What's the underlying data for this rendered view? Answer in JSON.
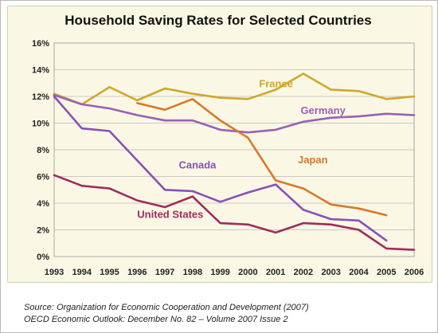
{
  "chart_data": {
    "type": "line",
    "title": "Household Saving Rates for Selected Countries",
    "x": [
      1993,
      1994,
      1995,
      1996,
      1997,
      1998,
      1999,
      2000,
      2001,
      2002,
      2003,
      2004,
      2005,
      2006
    ],
    "x_tick_labels": [
      "1993",
      "1994",
      "1995",
      "1996",
      "1997",
      "1998",
      "1999",
      "2000",
      "2001",
      "2002",
      "2003",
      "2004",
      "2005",
      "2006"
    ],
    "y_tick_labels": [
      "0%",
      "2%",
      "4%",
      "6%",
      "8%",
      "10%",
      "12%",
      "14%",
      "16%"
    ],
    "y_ticks": [
      0,
      2,
      4,
      6,
      8,
      10,
      12,
      14,
      16
    ],
    "ylim": [
      0,
      16
    ],
    "xlim": [
      1993,
      2006
    ],
    "grid": true,
    "legend": "inline labels",
    "series": [
      {
        "name": "France",
        "color": "#d4a52a",
        "values": [
          12.2,
          11.4,
          12.7,
          11.7,
          12.6,
          12.2,
          11.9,
          11.8,
          12.5,
          13.7,
          12.5,
          12.4,
          11.8,
          12.0
        ]
      },
      {
        "name": "Germany",
        "color": "#9a5fb6",
        "values": [
          12.1,
          11.4,
          11.1,
          10.6,
          10.2,
          10.2,
          9.5,
          9.3,
          9.5,
          10.1,
          10.4,
          10.5,
          10.7,
          10.6
        ]
      },
      {
        "name": "Japan",
        "color": "#d9782a",
        "values": [
          null,
          null,
          null,
          11.5,
          11.0,
          11.8,
          10.2,
          8.9,
          5.7,
          5.1,
          3.9,
          3.6,
          3.1,
          null
        ]
      },
      {
        "name": "Canada",
        "color": "#8a4fb8",
        "values": [
          12.0,
          9.6,
          9.4,
          7.2,
          5.0,
          4.9,
          4.1,
          4.8,
          5.4,
          3.5,
          2.8,
          2.7,
          1.2,
          null
        ]
      },
      {
        "name": "United States",
        "color": "#a02c5c",
        "values": [
          6.1,
          5.3,
          5.1,
          4.2,
          3.7,
          4.5,
          2.5,
          2.4,
          1.8,
          2.5,
          2.4,
          2.0,
          0.6,
          0.5
        ]
      }
    ],
    "series_labels": [
      {
        "series": "France",
        "x": 2000.4,
        "y": 12.7
      },
      {
        "series": "Germany",
        "x": 2001.9,
        "y": 10.7
      },
      {
        "series": "Japan",
        "x": 2001.8,
        "y": 7.0
      },
      {
        "series": "Canada",
        "x": 1997.5,
        "y": 6.6
      },
      {
        "series": "United States",
        "x": 1996.0,
        "y": 2.9
      }
    ]
  },
  "source": {
    "line1": "Source: Organization for Economic Cooperation and Development (2007)",
    "line2": "OECD Economic Outlook: December No. 82 – Volume 2007 Issue 2"
  }
}
